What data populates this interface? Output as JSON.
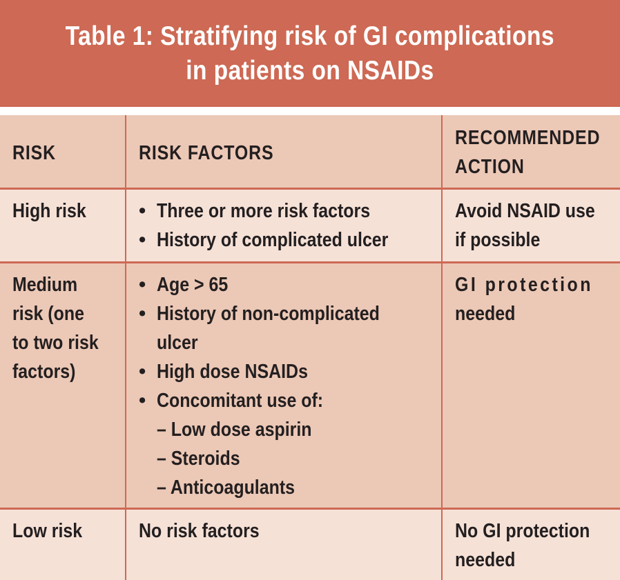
{
  "title": {
    "line1": "Table 1: Stratifying risk of GI complications",
    "line2": "in patients on NSAIDs"
  },
  "headers": {
    "risk": "RISK",
    "factors": "RISK FACTORS",
    "action_line1": "RECOMMENDED",
    "action_line2": "ACTION"
  },
  "rows": [
    {
      "risk": [
        "High risk"
      ],
      "factors": [
        {
          "bullet": "•",
          "text": "Three or more risk factors"
        },
        {
          "bullet": "•",
          "text": "History of complicated ulcer"
        }
      ],
      "action": [
        "Avoid NSAID use",
        "if possible"
      ]
    },
    {
      "risk": [
        "Medium",
        "risk (one",
        "to two risk",
        "factors)"
      ],
      "factors": [
        {
          "bullet": "•",
          "text": "Age > 65"
        },
        {
          "bullet": "•",
          "text": "History of non-complicated"
        },
        {
          "bullet": "",
          "text": "ulcer"
        },
        {
          "bullet": "•",
          "text": "High dose NSAIDs"
        },
        {
          "bullet": "•",
          "text": "Concomitant use of:"
        },
        {
          "bullet": "",
          "text": "– Low dose aspirin"
        },
        {
          "bullet": "",
          "text": "– Steroids"
        },
        {
          "bullet": "",
          "text": "– Anticoagulants"
        }
      ],
      "action": [
        "GI protection",
        "needed"
      ]
    },
    {
      "risk": [
        "Low risk"
      ],
      "factors": [
        {
          "bullet": "",
          "text": "No risk factors"
        }
      ],
      "action": [
        "No GI protection",
        "needed"
      ]
    }
  ],
  "colors": {
    "banner": "#cd6954",
    "header_row": "#ecc8b6",
    "light_row": "#f6e1d7",
    "medium_row": "#ecc8b6",
    "rule": "#cd6954",
    "title_text": "#ffffff",
    "body_text": "#231f20"
  }
}
